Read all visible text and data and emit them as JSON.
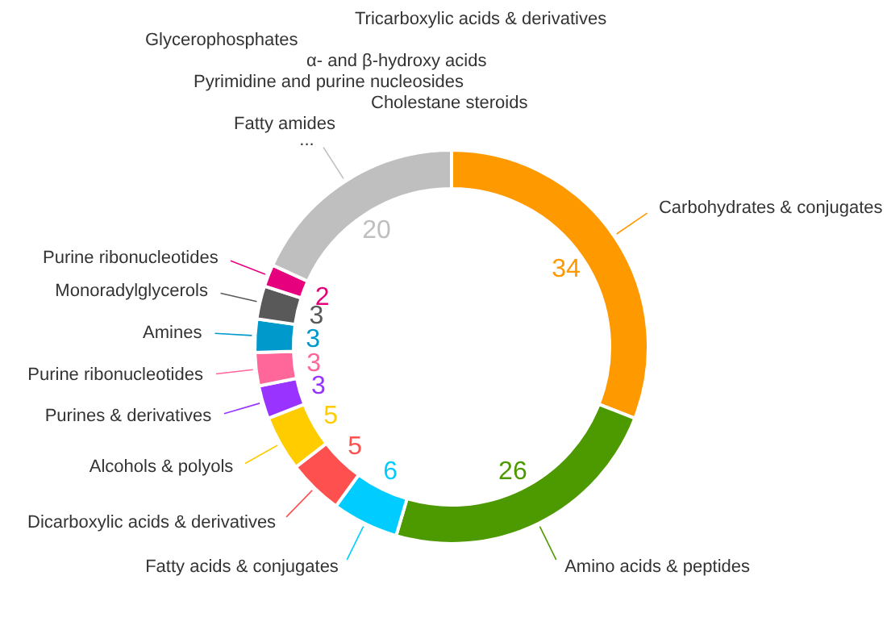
{
  "chart_data": {
    "type": "donut",
    "categories": [
      "Carbohydrates & conjugates",
      "Amino acids & peptides",
      "Fatty acids & conjugates",
      "Dicarboxylic acids & derivatives",
      "Alcohols & polyols",
      "Purines & derivatives",
      "Purine ribonucleotides",
      "Amines",
      "Monoradylglycerols",
      "Purine ribonucleotides",
      "..."
    ],
    "values": [
      34,
      26,
      6,
      5,
      5,
      3,
      3,
      3,
      3,
      2,
      20
    ],
    "colors": [
      "#ff9900",
      "#4d9900",
      "#00ccff",
      "#ff5050",
      "#ffcc00",
      "#9933ff",
      "#ff6699",
      "#0099cc",
      "#595959",
      "#e6007e",
      "#bfbfbf"
    ],
    "data_labels": true,
    "legend": false,
    "annotations": [
      "Tricarboxylic acids & derivatives",
      "Glycerophosphates",
      "α- and β-hydroxy acids",
      "Pyrimidine and purine nucleosides",
      "Cholestane steroids",
      "Fatty amides"
    ]
  }
}
